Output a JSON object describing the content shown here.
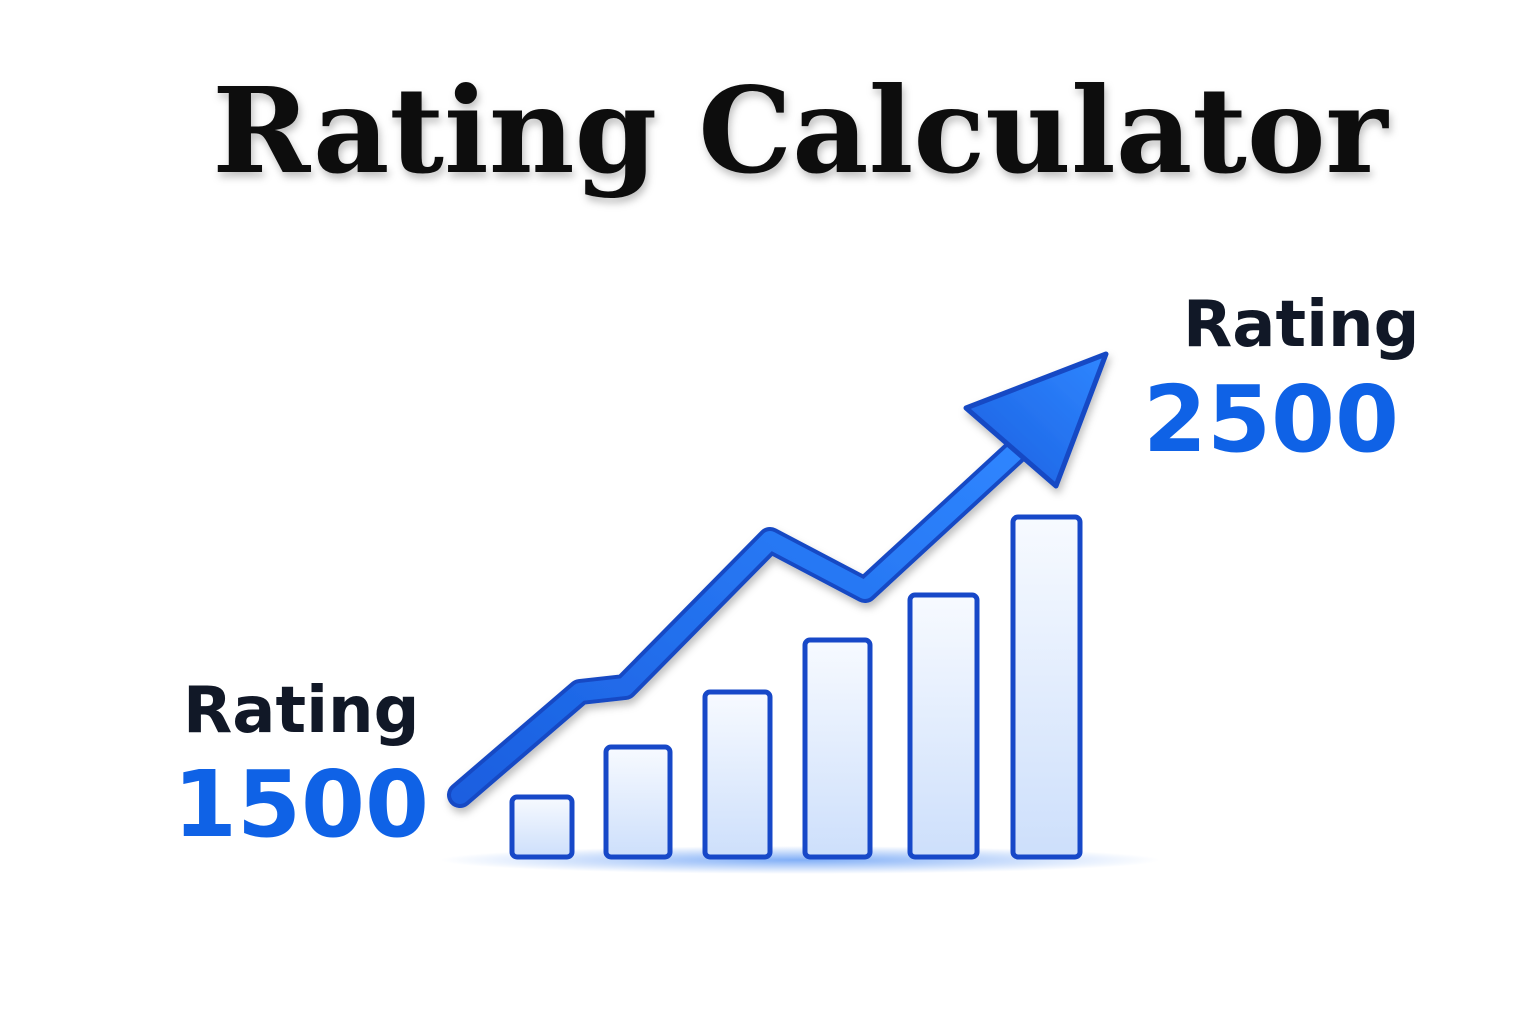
{
  "title": "Rating Calculator",
  "start": {
    "label": "Rating",
    "value": 1500
  },
  "end": {
    "label": "Rating",
    "value": 2500
  }
}
